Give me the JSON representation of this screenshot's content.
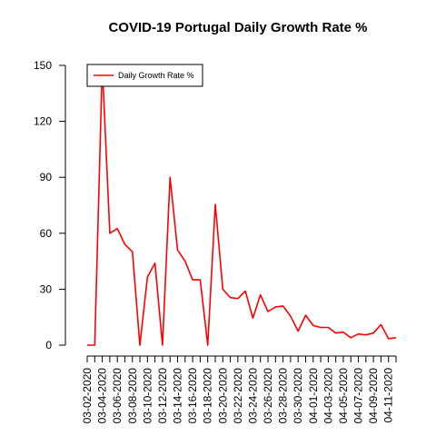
{
  "chart_data": {
    "type": "line",
    "title": "COVID-19 Portugal Daily Growth Rate %",
    "xlabel": "",
    "ylabel": "",
    "ylim": [
      0,
      150
    ],
    "yticks": [
      0,
      30,
      60,
      90,
      120,
      150
    ],
    "grid": false,
    "legend_position": "top-left",
    "x_tick_labels": [
      "03-02-2020",
      "03-04-2020",
      "03-06-2020",
      "03-08-2020",
      "03-10-2020",
      "03-12-2020",
      "03-14-2020",
      "03-16-2020",
      "03-18-2020",
      "03-20-2020",
      "03-22-2020",
      "03-24-2020",
      "03-26-2020",
      "03-28-2020",
      "03-30-2020",
      "04-01-2020",
      "04-03-2020",
      "04-05-2020",
      "04-07-2020",
      "04-09-2020",
      "04-11-2020"
    ],
    "x": [
      "2020-03-02",
      "2020-03-03",
      "2020-03-04",
      "2020-03-05",
      "2020-03-06",
      "2020-03-07",
      "2020-03-08",
      "2020-03-09",
      "2020-03-10",
      "2020-03-11",
      "2020-03-12",
      "2020-03-13",
      "2020-03-14",
      "2020-03-15",
      "2020-03-16",
      "2020-03-17",
      "2020-03-18",
      "2020-03-19",
      "2020-03-20",
      "2020-03-21",
      "2020-03-22",
      "2020-03-23",
      "2020-03-24",
      "2020-03-25",
      "2020-03-26",
      "2020-03-27",
      "2020-03-28",
      "2020-03-29",
      "2020-03-30",
      "2020-03-31",
      "2020-04-01",
      "2020-04-02",
      "2020-04-03",
      "2020-04-04",
      "2020-04-05",
      "2020-04-06",
      "2020-04-07",
      "2020-04-08",
      "2020-04-09",
      "2020-04-10",
      "2020-04-11",
      "2020-04-12"
    ],
    "series": [
      {
        "name": "Daily Growth Rate %",
        "color": "#ff0000",
        "values": [
          0,
          0,
          150,
          60,
          62.5,
          54,
          50,
          0,
          36.5,
          44,
          0,
          90,
          51,
          45,
          35,
          35,
          0,
          75.5,
          30,
          25.5,
          25,
          29,
          14.5,
          27,
          18,
          20.5,
          21,
          15.5,
          7.5,
          16,
          10.5,
          9.5,
          9.5,
          6.5,
          7,
          4,
          6,
          5.5,
          6.5,
          11,
          3.5,
          4
        ]
      }
    ]
  }
}
